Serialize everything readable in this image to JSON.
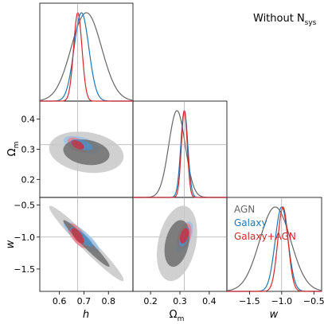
{
  "title": "Without N",
  "title_subscript": "sys",
  "chart_data": {
    "type": "corner",
    "parameters": [
      {
        "key": "h",
        "symbol": "h",
        "range": [
          0.52,
          0.9
        ],
        "ticks": [
          0.6,
          0.7,
          0.8
        ],
        "tick_labels": [
          "0.6",
          "0.7",
          "0.8"
        ]
      },
      {
        "key": "Om",
        "symbol": "Ω",
        "subscript": "m",
        "range": [
          0.14,
          0.46
        ],
        "ticks": [
          0.2,
          0.3,
          0.4
        ],
        "tick_labels": [
          "0.2",
          "0.3",
          "0.4"
        ]
      },
      {
        "key": "w",
        "symbol": "w",
        "range": [
          -1.85,
          -0.38
        ],
        "ticks": [
          -1.5,
          -1.0,
          -0.5
        ],
        "tick_labels": [
          "−1.5",
          "−1.0",
          "−0.5"
        ]
      }
    ],
    "w_row_tick_labels": [
      "−1.5",
      "−1.0",
      "−0.5"
    ],
    "om_row_tick_labels": [
      "0.2",
      "0.3",
      "0.4"
    ],
    "series": [
      {
        "name": "AGN",
        "color": "#666666",
        "fill1": "#6f6f6f",
        "fill2": "#c8c8c8",
        "h": {
          "mean": 0.71,
          "sd": 0.062
        },
        "Om": {
          "mean": 0.29,
          "sd": 0.028
        },
        "w": {
          "mean": -1.1,
          "sd": 0.24
        },
        "rho": {
          "h_Om": -0.2,
          "h_w": -0.97,
          "Om_w": 0.3
        }
      },
      {
        "name": "Galaxy",
        "color": "#1f77b4",
        "fill1": "#4f8fc7",
        "fill2": "#9cc2e6",
        "h": {
          "mean": 0.69,
          "sd": 0.03
        },
        "Om": {
          "mean": 0.315,
          "sd": 0.012
        },
        "w": {
          "mean": -1.0,
          "sd": 0.1
        },
        "rho": {
          "h_Om": -0.5,
          "h_w": -0.85,
          "Om_w": 0.55
        }
      },
      {
        "name": "Galaxy+AGN",
        "color": "#d62728",
        "fill1": "#c9303f",
        "fill2": "#e8808d",
        "h": {
          "mean": 0.675,
          "sd": 0.017
        },
        "Om": {
          "mean": 0.315,
          "sd": 0.01
        },
        "w": {
          "mean": -0.98,
          "sd": 0.08
        },
        "rho": {
          "h_Om": -0.5,
          "h_w": -0.7,
          "Om_w": 0.4
        }
      }
    ],
    "reference_lines": {
      "h": 0.674,
      "Om": 0.315,
      "w": -1.0
    },
    "legend_placement": "right, between top-right and bottom-right panels"
  }
}
